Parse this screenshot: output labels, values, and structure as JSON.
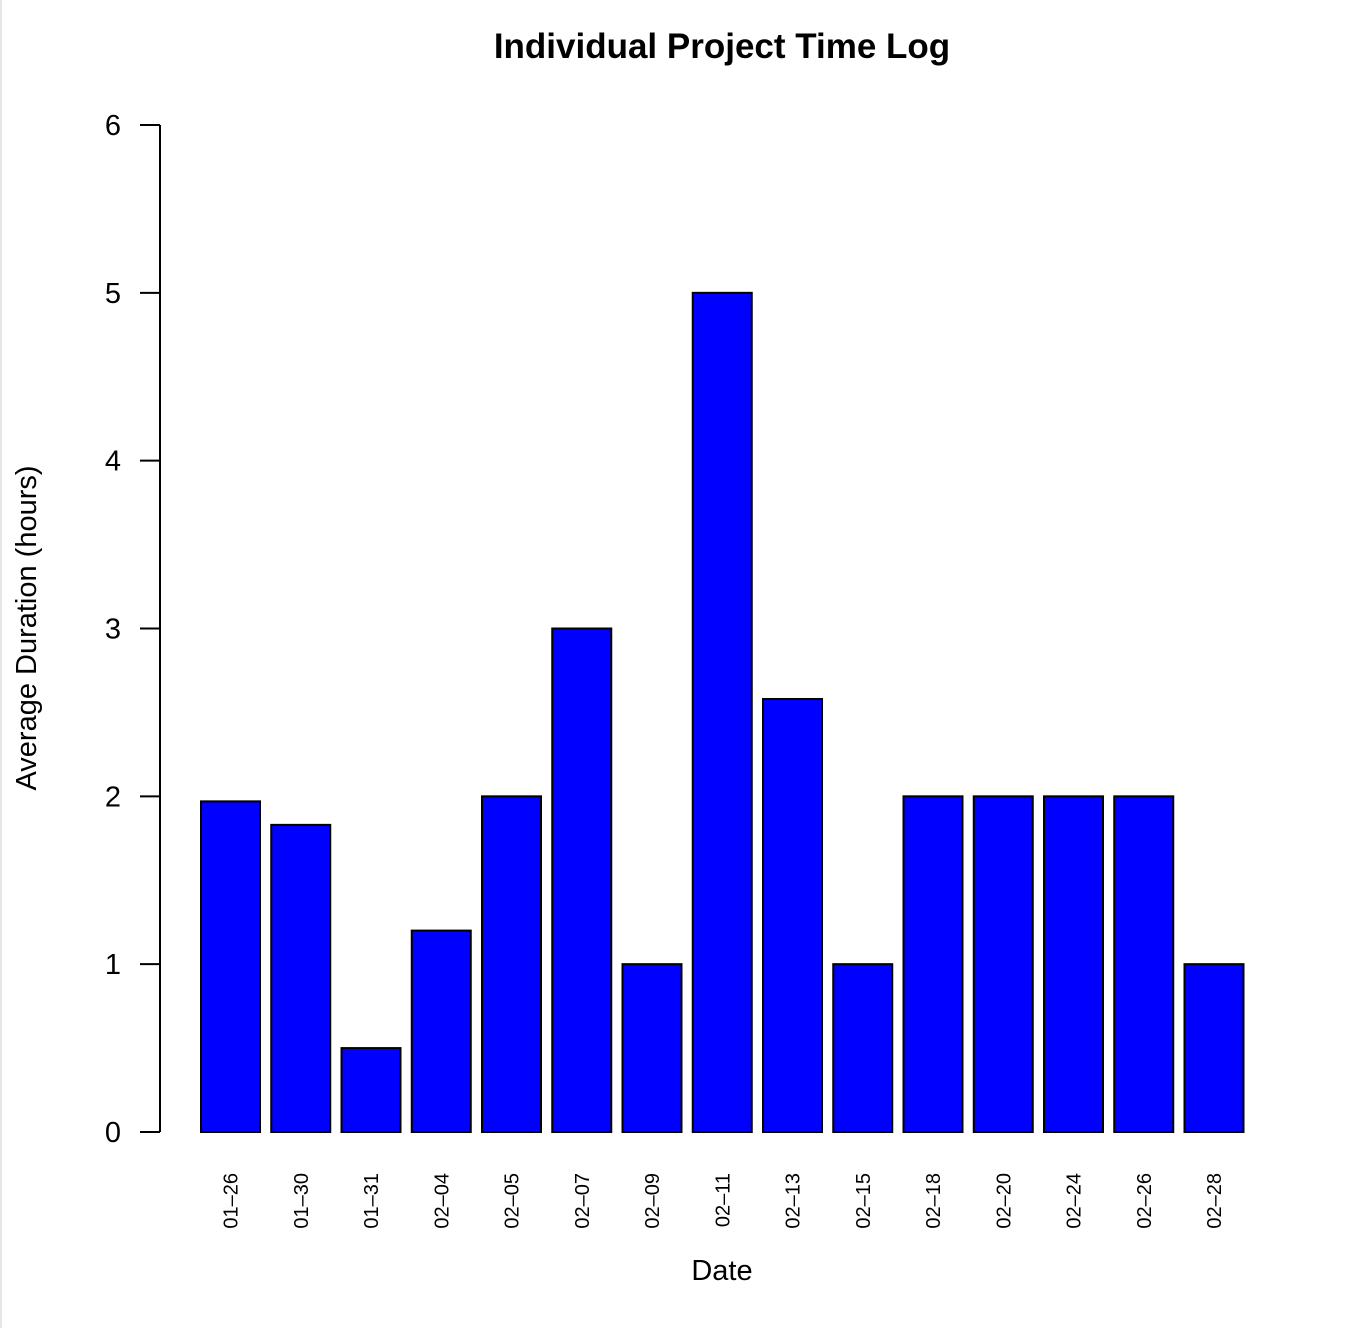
{
  "chart_data": {
    "type": "bar",
    "title": "Individual Project Time Log",
    "xlabel": "Date",
    "ylabel": "Average Duration (hours)",
    "ylim": [
      0,
      6
    ],
    "yticks": [
      0,
      1,
      2,
      3,
      4,
      5,
      6
    ],
    "categories": [
      "01-26",
      "01-30",
      "01-31",
      "02-04",
      "02-05",
      "02-07",
      "02-09",
      "02-11",
      "02-13",
      "02-15",
      "02-18",
      "02-20",
      "02-24",
      "02-26",
      "02-28"
    ],
    "category_labels": [
      "01–26",
      "01–30",
      "01–31",
      "02–04",
      "02–05",
      "02–07",
      "02–09",
      "02–11",
      "02–13",
      "02–15",
      "02–18",
      "02–20",
      "02–24",
      "02–26",
      "02–28"
    ],
    "values": [
      1.97,
      1.83,
      0.5,
      1.2,
      2.0,
      3.0,
      1.0,
      5.0,
      2.58,
      1.0,
      2.0,
      2.0,
      2.0,
      2.0,
      1.0
    ],
    "bar_color": "#0000ff",
    "grid": false,
    "legend": "none"
  }
}
